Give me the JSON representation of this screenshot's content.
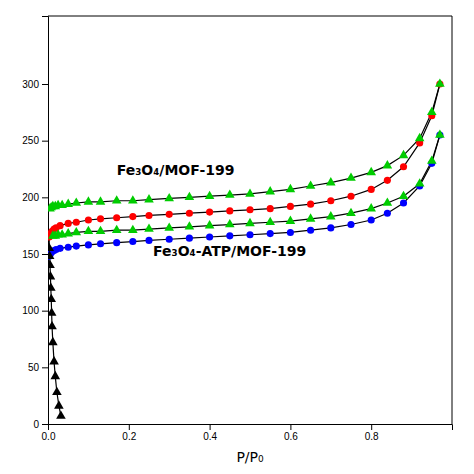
{
  "chart_data": {
    "type": "line",
    "xlabel": "P/P₀",
    "xlim": [
      0,
      1.0
    ],
    "ylim": [
      0,
      360
    ],
    "xticks": [
      {
        "value": 0.0,
        "label": "0.0"
      },
      0.2,
      0.4,
      0.6,
      0.8
    ],
    "yticks": [
      0,
      50,
      100,
      150,
      200,
      250,
      300
    ],
    "grid": false,
    "series": [
      {
        "color": "#ff0000",
        "marker": "circle",
        "x": [
          0.003,
          0.006,
          0.01,
          0.015,
          0.02,
          0.03,
          0.05,
          0.07,
          0.1,
          0.13,
          0.17,
          0.21,
          0.25,
          0.3,
          0.35,
          0.4,
          0.45,
          0.5,
          0.55,
          0.6,
          0.65,
          0.7,
          0.75,
          0.8,
          0.84,
          0.88,
          0.92,
          0.95,
          0.97
        ],
        "values": [
          165,
          168,
          170,
          172,
          173,
          175,
          177,
          178,
          180,
          181,
          182,
          183,
          184,
          185,
          186,
          187,
          188,
          189,
          190,
          192,
          194,
          197,
          201,
          207,
          215,
          227,
          248,
          272,
          300
        ]
      },
      {
        "color": "#00cc00",
        "marker": "triangle",
        "x": [
          0.97,
          0.95,
          0.92,
          0.88,
          0.84,
          0.8,
          0.75,
          0.7,
          0.65,
          0.6,
          0.55,
          0.5,
          0.45,
          0.4,
          0.35,
          0.3,
          0.25,
          0.21,
          0.17,
          0.13,
          0.1,
          0.07,
          0.05,
          0.035,
          0.025,
          0.018,
          0.012,
          0.008,
          0.005
        ],
        "values": [
          300,
          275,
          252,
          237,
          228,
          222,
          217,
          213,
          210,
          207,
          205,
          203,
          202,
          201,
          200,
          199,
          198,
          197,
          197,
          196,
          196,
          195,
          194,
          193,
          193,
          192,
          192,
          191,
          190
        ]
      },
      {
        "color": "#0000ff",
        "marker": "circle",
        "x": [
          0.003,
          0.006,
          0.01,
          0.015,
          0.02,
          0.03,
          0.05,
          0.07,
          0.1,
          0.13,
          0.17,
          0.21,
          0.25,
          0.3,
          0.35,
          0.4,
          0.45,
          0.5,
          0.55,
          0.6,
          0.65,
          0.7,
          0.75,
          0.8,
          0.84,
          0.88,
          0.92,
          0.95,
          0.97
        ],
        "values": [
          148,
          150,
          152,
          153,
          154,
          155,
          156,
          157,
          158,
          159,
          160,
          161,
          162,
          163,
          164,
          165,
          166,
          167,
          168,
          169,
          171,
          173,
          176,
          180,
          186,
          195,
          210,
          230,
          255
        ]
      },
      {
        "color": "#00cc00",
        "marker": "triangle",
        "x": [
          0.97,
          0.95,
          0.92,
          0.88,
          0.84,
          0.8,
          0.75,
          0.7,
          0.65,
          0.6,
          0.55,
          0.5,
          0.45,
          0.4,
          0.35,
          0.3,
          0.25,
          0.21,
          0.17,
          0.13,
          0.1,
          0.07,
          0.05,
          0.035,
          0.025,
          0.018,
          0.012
        ],
        "values": [
          255,
          232,
          212,
          201,
          195,
          190,
          186,
          183,
          181,
          179,
          178,
          177,
          176,
          175,
          174,
          173,
          172,
          171,
          171,
          170,
          170,
          169,
          168,
          167,
          167,
          166,
          166
        ]
      },
      {
        "color": "#000000",
        "marker": "triangle",
        "x": [
          0.003,
          0.004,
          0.005,
          0.006,
          0.007,
          0.008,
          0.009,
          0.01,
          0.012,
          0.015,
          0.018,
          0.022,
          0.027,
          0.032
        ],
        "values": [
          155,
          148,
          140,
          130,
          120,
          110,
          98,
          86,
          72,
          55,
          42,
          28,
          16,
          7
        ]
      },
      {
        "color": "#000000",
        "marker": "none",
        "x": [
          0.003,
          0.003
        ],
        "values": [
          155,
          165
        ]
      }
    ],
    "annotations": [
      {
        "text": "Fe₃O₄/MOF-199",
        "x": 0.17,
        "y": 220
      },
      {
        "text": "Fe₃O₄-ATP/MOF-199",
        "x": 0.26,
        "y": 148
      }
    ]
  }
}
